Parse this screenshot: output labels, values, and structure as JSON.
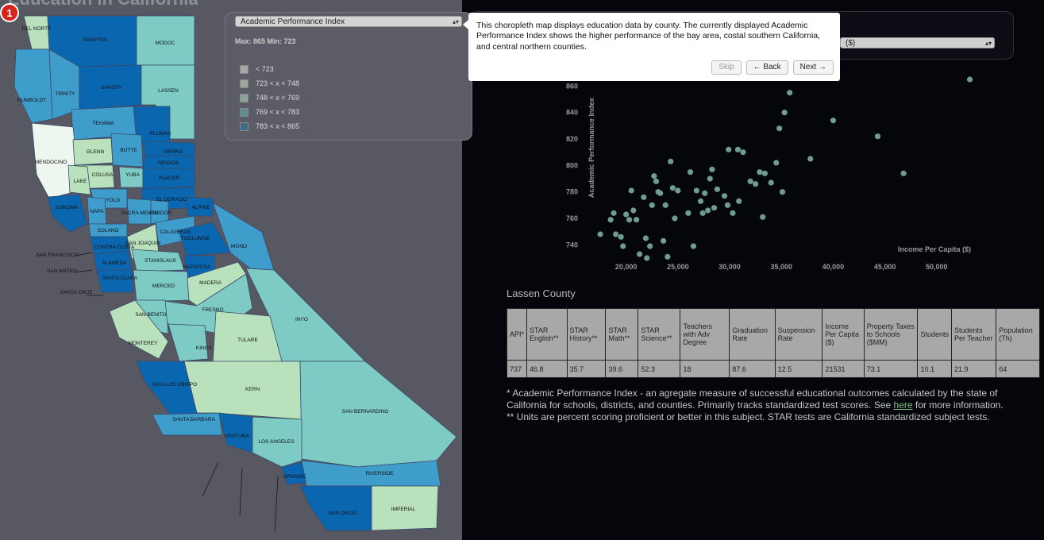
{
  "page": {
    "title": "Education in California",
    "tour_step": "1"
  },
  "colors": {
    "c1": "#eef7ef",
    "c2": "#b9e2bc",
    "c3": "#7dcbc4",
    "c4": "#3f9dcb",
    "c5": "#0b66b0",
    "bg": "#05050c",
    "panel": "#585863"
  },
  "legend": {
    "selected_metric": "Academic Performance Index",
    "max_min": "Max: 865 Min: 723",
    "items": [
      {
        "label": "< 723",
        "color": "#a9a9a2"
      },
      {
        "label": "723 < x < 748",
        "color": "#9ea99c"
      },
      {
        "label": "748 < x < 769",
        "color": "#8aa49c"
      },
      {
        "label": "769 < x < 783",
        "color": "#5d8d94"
      },
      {
        "label": "783 < x < 865",
        "color": "#3d6d86"
      }
    ]
  },
  "scatter_selector": {
    "selected": "($)"
  },
  "tooltip": {
    "text": "This choropleth map displays education data by county. The currently displayed Academic Performance Index shows the higher performance of the bay area, costal southern California, and central northern counties.",
    "skip": "Skip",
    "back": "← Back",
    "next": "Next →"
  },
  "counties": [
    {
      "name": "DEL NORTE",
      "shade": "c2"
    },
    {
      "name": "SISKIYOU",
      "shade": "c5"
    },
    {
      "name": "MODOC",
      "shade": "c3"
    },
    {
      "name": "HUMBOLDT",
      "shade": "c4"
    },
    {
      "name": "TRINITY",
      "shade": "c4"
    },
    {
      "name": "SHASTA",
      "shade": "c5"
    },
    {
      "name": "LASSEN",
      "shade": "c3"
    },
    {
      "name": "TEHAMA",
      "shade": "c4"
    },
    {
      "name": "PLUMAS",
      "shade": "c5"
    },
    {
      "name": "MENDOCINO",
      "shade": "c1"
    },
    {
      "name": "GLENN",
      "shade": "c2"
    },
    {
      "name": "BUTTE",
      "shade": "c4"
    },
    {
      "name": "SIERRA",
      "shade": "c5"
    },
    {
      "name": "NEVADA",
      "shade": "c5"
    },
    {
      "name": "COLUSA",
      "shade": "c2"
    },
    {
      "name": "YUBA",
      "shade": "c3"
    },
    {
      "name": "PLACER",
      "shade": "c5"
    },
    {
      "name": "LAKE",
      "shade": "c2"
    },
    {
      "name": "YOLO",
      "shade": "c4"
    },
    {
      "name": "EL DORADO",
      "shade": "c5"
    },
    {
      "name": "SONOMA",
      "shade": "c5"
    },
    {
      "name": "NAPA",
      "shade": "c4"
    },
    {
      "name": "SACRA MENTO",
      "shade": "c4"
    },
    {
      "name": "AMADOR",
      "shade": "c4"
    },
    {
      "name": "ALPINE",
      "shade": "c5"
    },
    {
      "name": "SOLANO",
      "shade": "c4"
    },
    {
      "name": "CALAVERAS",
      "shade": "c4"
    },
    {
      "name": "TUOLUMNE",
      "shade": "c5"
    },
    {
      "name": "MONO",
      "shade": "c4"
    },
    {
      "name": "SAN JOAQUIN",
      "shade": "c2"
    },
    {
      "name": "CONTRA COSTA",
      "shade": "c5"
    },
    {
      "name": "ALAMEDA",
      "shade": "c5"
    },
    {
      "name": "STANISLAUS",
      "shade": "c3"
    },
    {
      "name": "MARIPOSA",
      "shade": "c5"
    },
    {
      "name": "SANTA CLARA",
      "shade": "c5"
    },
    {
      "name": "MERCED",
      "shade": "c3"
    },
    {
      "name": "MADERA",
      "shade": "c2"
    },
    {
      "name": "FRESNO",
      "shade": "c3"
    },
    {
      "name": "INYO",
      "shade": "c3"
    },
    {
      "name": "SAN BENITO",
      "shade": "c3"
    },
    {
      "name": "MONTEREY",
      "shade": "c2"
    },
    {
      "name": "KINGS",
      "shade": "c3"
    },
    {
      "name": "TULARE",
      "shade": "c2"
    },
    {
      "name": "SAN LUIS OBISPO",
      "shade": "c5"
    },
    {
      "name": "KERN",
      "shade": "c2"
    },
    {
      "name": "SAN BERNARDINO",
      "shade": "c3"
    },
    {
      "name": "SANTA BARBARA",
      "shade": "c4"
    },
    {
      "name": "VENTURA",
      "shade": "c5"
    },
    {
      "name": "LOS ANGELES",
      "shade": "c3"
    },
    {
      "name": "ORANGE",
      "shade": "c5"
    },
    {
      "name": "RIVERSIDE",
      "shade": "c4"
    },
    {
      "name": "SAN DIEGO",
      "shade": "c5"
    },
    {
      "name": "IMPERIAL",
      "shade": "c2"
    }
  ],
  "outside_labels": [
    "SAN FRANCISCO",
    "SAN MATEO",
    "SANTA CRUZ"
  ],
  "chart_data": {
    "type": "scatter",
    "xlabel": "Income Per Capita ($)",
    "ylabel": "Academic Performance Index",
    "xlim": [
      15500,
      55000
    ],
    "ylim": [
      730,
      868
    ],
    "xticks": [
      "20,000",
      "25,000",
      "30,000",
      "35,000",
      "40,000",
      "45,000",
      "50,000"
    ],
    "xtick_values": [
      20000,
      25000,
      30000,
      35000,
      40000,
      45000,
      50000
    ],
    "yticks": [
      "740",
      "760",
      "780",
      "800",
      "820",
      "840",
      "860"
    ],
    "ytick_values": [
      740,
      760,
      780,
      800,
      820,
      840,
      860
    ],
    "point_color": "#6f9c8e",
    "points": [
      [
        17500,
        748
      ],
      [
        18500,
        759
      ],
      [
        18800,
        764
      ],
      [
        19000,
        748
      ],
      [
        19500,
        746
      ],
      [
        19700,
        739
      ],
      [
        20000,
        763
      ],
      [
        20300,
        759
      ],
      [
        20500,
        781
      ],
      [
        20700,
        766
      ],
      [
        21000,
        759
      ],
      [
        21300,
        733
      ],
      [
        21700,
        776
      ],
      [
        21900,
        745
      ],
      [
        22000,
        730
      ],
      [
        22300,
        739
      ],
      [
        22500,
        770
      ],
      [
        22700,
        792
      ],
      [
        22900,
        788
      ],
      [
        23100,
        780
      ],
      [
        23300,
        779
      ],
      [
        23600,
        743
      ],
      [
        23800,
        770
      ],
      [
        24000,
        731
      ],
      [
        24300,
        803
      ],
      [
        24500,
        783
      ],
      [
        24700,
        760
      ],
      [
        25000,
        781
      ],
      [
        26000,
        764
      ],
      [
        26200,
        795
      ],
      [
        26500,
        739
      ],
      [
        26800,
        781
      ],
      [
        27200,
        773
      ],
      [
        27400,
        764
      ],
      [
        27600,
        779
      ],
      [
        27900,
        766
      ],
      [
        28100,
        790
      ],
      [
        28300,
        797
      ],
      [
        28500,
        768
      ],
      [
        28800,
        782
      ],
      [
        29500,
        777
      ],
      [
        29800,
        770
      ],
      [
        29900,
        812
      ],
      [
        30300,
        764
      ],
      [
        30800,
        812
      ],
      [
        30900,
        773
      ],
      [
        31300,
        810
      ],
      [
        32000,
        788
      ],
      [
        32500,
        786
      ],
      [
        32900,
        795
      ],
      [
        33200,
        761
      ],
      [
        33400,
        794
      ],
      [
        34000,
        787
      ],
      [
        34500,
        802
      ],
      [
        34800,
        828
      ],
      [
        35100,
        780
      ],
      [
        35300,
        840
      ],
      [
        35800,
        855
      ],
      [
        37800,
        805
      ],
      [
        40000,
        834
      ],
      [
        44300,
        822
      ],
      [
        46800,
        794
      ],
      [
        53200,
        865
      ]
    ]
  },
  "county_detail": {
    "name": "Lassen County",
    "headers": [
      "API*",
      "STAR English**",
      "STAR History**",
      "STAR Math**",
      "STAR Science**",
      "Teachers with Adv Degree",
      "Graduation Rate",
      "Suspension Rate",
      "Income Per Capita ($)",
      "Property Taxes to Schools ($MM)",
      "Students",
      "Students Per Teacher",
      "Population (Th)"
    ],
    "values": [
      "737",
      "46.8",
      "35.7",
      "39.6",
      "52.3",
      "18",
      "87.6",
      "12.5",
      "21531",
      "73.1",
      "10.1",
      "21.9",
      "64"
    ]
  },
  "footnotes": {
    "api_note": "* Academic Performance Index - an agregate measure of successful educational outcomes calculated by the state of California for schools, districts, and counties. Primarily tracks standardized test scores. See",
    "link": "here",
    "api_note_end": "for more information.",
    "star_note": "** Units are percent scoring proficient or better in this subject. STAR tests are California standardized subject tests."
  }
}
